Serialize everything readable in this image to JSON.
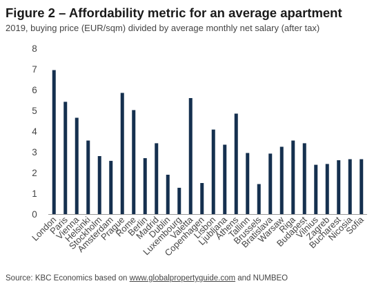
{
  "title": "Figure 2 – Affordability metric for an average apartment",
  "subtitle": "2019, buying price (EUR/sqm) divided by average monthly net salary (after tax)",
  "source": {
    "prefix": "Source: KBC Economics based on",
    "link": "www.globalpropertyguide.com",
    "suffix": "and NUMBEO"
  },
  "colors": {
    "bar": "#15304f",
    "axis": "#999999",
    "text": "#444444"
  },
  "chart_data": {
    "type": "bar",
    "categories": [
      "London",
      "Paris",
      "Vienna",
      "Helsinki",
      "Stockholm",
      "Amsterdam",
      "Prague",
      "Rome",
      "Berlin",
      "Madrid",
      "Dublin",
      "Luxembourg",
      "Valetta",
      "Copenhagen",
      "Lisbon",
      "Ljubljana",
      "Athens",
      "Tallinn",
      "Brussels",
      "Bratislava",
      "Warsaw",
      "Riga",
      "Budapest",
      "Vilnius",
      "Zagreb",
      "Bucharest",
      "Nicosia",
      "Sofia"
    ],
    "values": [
      6.95,
      5.42,
      4.65,
      3.55,
      2.8,
      2.57,
      5.85,
      5.02,
      2.7,
      3.42,
      1.9,
      1.27,
      5.6,
      1.5,
      4.08,
      3.35,
      4.85,
      2.95,
      1.45,
      2.92,
      3.25,
      3.55,
      3.42,
      2.38,
      2.42,
      2.6,
      2.65,
      2.65
    ],
    "yticks": [
      "0",
      "1",
      "2",
      "3",
      "4",
      "5",
      "6",
      "7",
      "8"
    ],
    "ylim": [
      0,
      8
    ],
    "grid": false,
    "legend": "none"
  }
}
